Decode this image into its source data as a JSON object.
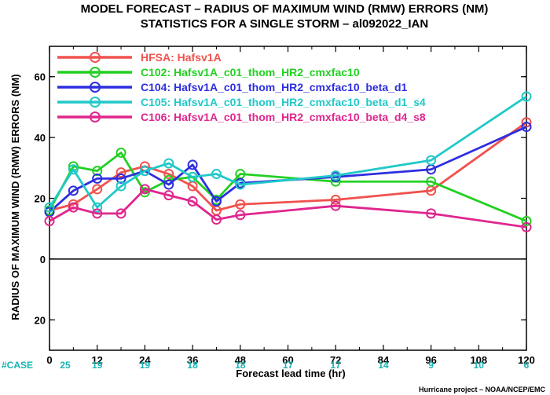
{
  "chart_data": {
    "type": "line",
    "title": "MODEL FORECAST – RADIUS OF MAXIMUM WIND (RMW) ERRORS (NM)",
    "subtitle": "STATISTICS FOR A SINGLE STORM – al092022_IAN",
    "xlabel": "Forecast lead time (hr)",
    "ylabel": "RADIUS OF MAXIMUM WIND (RMW) ERRORS (NM)",
    "xlim": [
      0,
      120
    ],
    "ylim": [
      -30,
      70
    ],
    "xticks": [
      0,
      12,
      24,
      36,
      48,
      60,
      72,
      84,
      96,
      108,
      120
    ],
    "yticks": [
      -20,
      0,
      20,
      40,
      60
    ],
    "ytick_labels": [
      "20",
      "0",
      "20",
      "40",
      "60"
    ],
    "zero_line": true,
    "grid": false,
    "legend_position": "top-left",
    "case_label": "#CASE",
    "case_counts": [
      {
        "x": 0,
        "n": "25"
      },
      {
        "x": 12,
        "n": "19"
      },
      {
        "x": 24,
        "n": "19"
      },
      {
        "x": 36,
        "n": "18"
      },
      {
        "x": 48,
        "n": "18"
      },
      {
        "x": 60,
        "n": "17"
      },
      {
        "x": 72,
        "n": "17"
      },
      {
        "x": 84,
        "n": "14"
      },
      {
        "x": 96,
        "n": "9"
      },
      {
        "x": 108,
        "n": "10"
      },
      {
        "x": 120,
        "n": "6"
      }
    ],
    "credit": "Hurricane project – NOAA/NCEP/EMC",
    "series": [
      {
        "name": "HFSA: Hafsv1A",
        "color": "#f0524e",
        "x": [
          0,
          6,
          12,
          18,
          24,
          30,
          36,
          42,
          48,
          72,
          96,
          120
        ],
        "y": [
          16,
          18,
          23,
          28.5,
          30.5,
          28,
          24,
          16,
          18,
          19.5,
          22.5,
          45
        ]
      },
      {
        "name": "C102: Hafsv1A_c01_thom_HR2_cmxfac10",
        "color": "#22d022",
        "x": [
          0,
          6,
          12,
          18,
          24,
          30,
          36,
          42,
          48,
          72,
          96,
          120
        ],
        "y": [
          16,
          30.5,
          29,
          35,
          22,
          26,
          27,
          19.5,
          28,
          25.5,
          25.5,
          12.5
        ]
      },
      {
        "name": "C104: Hafsv1A_c01_thom_HR2_cmxfac10_beta_d1",
        "color": "#2e2ee0",
        "x": [
          0,
          6,
          12,
          18,
          24,
          30,
          36,
          42,
          48,
          72,
          96,
          120
        ],
        "y": [
          15.5,
          22.5,
          26.5,
          26.5,
          29,
          24.5,
          31,
          19,
          25,
          27,
          29.5,
          43.5
        ]
      },
      {
        "name": "C105: Hafsv1A_c01_thom_HR2_cmxfac10_beta_d1_s4",
        "color": "#22c8c8",
        "x": [
          0,
          6,
          12,
          18,
          24,
          30,
          36,
          42,
          48,
          72,
          96,
          120
        ],
        "y": [
          17,
          29.5,
          17,
          24,
          29,
          31.5,
          27,
          28,
          24.5,
          27.5,
          32.5,
          53.5
        ]
      },
      {
        "name": "C106: Hafsv1A_c01_thom_HR2_cmxfac10_beta_d4_s8",
        "color": "#e0268e",
        "x": [
          0,
          6,
          12,
          18,
          24,
          30,
          36,
          42,
          48,
          72,
          96,
          120
        ],
        "y": [
          12.5,
          17,
          15,
          15,
          23,
          21,
          19,
          13,
          14.5,
          17.5,
          15,
          10.5
        ]
      }
    ]
  }
}
